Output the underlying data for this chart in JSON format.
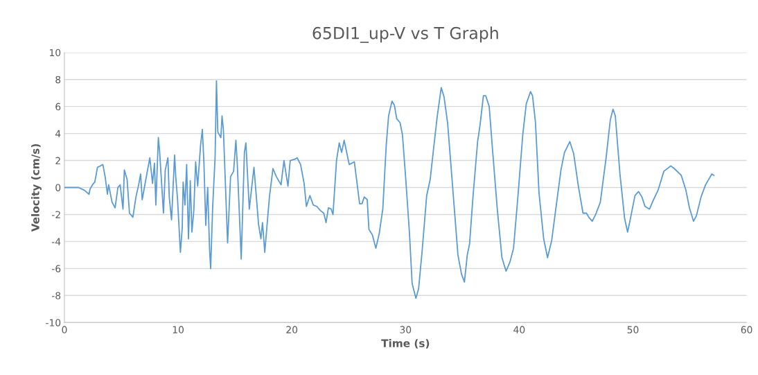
{
  "chart_data": {
    "type": "line",
    "title": "65DI1_up-V vs T Graph",
    "xlabel": "Time (s)",
    "ylabel": "Velocity (cm/s)",
    "xlim": [
      0,
      60
    ],
    "xticks": [
      0,
      10,
      20,
      30,
      40,
      50,
      60
    ],
    "ylim": [
      -10,
      10
    ],
    "yticks": [
      -10,
      -8,
      -6,
      -4,
      -2,
      0,
      2,
      4,
      6,
      8,
      10
    ],
    "grid": "y",
    "marker": "none",
    "line_style": "solid",
    "series": [
      {
        "color": "#5b9bd5",
        "x": [
          0,
          1.24,
          1.75,
          2.16,
          2.26,
          2.46,
          2.67,
          2.91,
          3.17,
          3.38,
          3.58,
          3.78,
          3.89,
          4.19,
          4.46,
          4.7,
          4.9,
          5.15,
          5.27,
          5.51,
          5.72,
          6.02,
          6.29,
          6.53,
          6.7,
          6.84,
          7.14,
          7.51,
          7.75,
          7.92,
          8.04,
          8.26,
          8.37,
          8.71,
          8.87,
          9.1,
          9.22,
          9.42,
          9.69,
          9.79,
          9.95,
          10.2,
          10.36,
          10.44,
          10.6,
          10.75,
          10.91,
          11.07,
          11.21,
          11.38,
          11.54,
          11.72,
          11.97,
          12.13,
          12.27,
          12.43,
          12.6,
          12.76,
          12.86,
          13.04,
          13.25,
          13.37,
          13.49,
          13.76,
          13.86,
          13.98,
          14.35,
          14.61,
          14.88,
          15.08,
          15.2,
          15.55,
          15.83,
          15.96,
          16.26,
          16.67,
          17.07,
          17.28,
          17.42,
          17.62,
          18.03,
          18.34,
          18.64,
          19.05,
          19.31,
          19.66,
          19.86,
          20.27,
          20.47,
          20.77,
          21.08,
          21.28,
          21.59,
          21.89,
          22.2,
          22.5,
          22.81,
          23.01,
          23.22,
          23.46,
          23.62,
          23.93,
          24.17,
          24.38,
          24.6,
          25.05,
          25.5,
          25.96,
          26.17,
          26.37,
          26.63,
          26.78,
          27.08,
          27.39,
          27.69,
          28.0,
          28.3,
          28.51,
          28.81,
          29.02,
          29.22,
          29.52,
          29.73,
          30.03,
          30.34,
          30.58,
          30.91,
          31.15,
          31.46,
          31.86,
          32.17,
          32.47,
          32.78,
          33.14,
          33.39,
          33.7,
          34.1,
          34.61,
          34.92,
          35.18,
          35.43,
          35.63,
          35.94,
          36.34,
          36.55,
          36.85,
          37.05,
          37.36,
          37.66,
          38.07,
          38.48,
          38.84,
          39.19,
          39.5,
          39.91,
          40.31,
          40.62,
          40.99,
          41.17,
          41.43,
          41.74,
          42.15,
          42.49,
          42.86,
          43.26,
          43.67,
          43.98,
          44.45,
          44.79,
          45.2,
          45.61,
          45.91,
          46.12,
          46.42,
          46.72,
          47.13,
          47.64,
          48.01,
          48.25,
          48.45,
          48.86,
          49.27,
          49.53,
          49.78,
          50.18,
          50.49,
          50.79,
          51.06,
          51.46,
          51.81,
          52.21,
          52.72,
          53.34,
          53.64,
          54.25,
          54.66,
          54.97,
          55.33,
          55.58,
          55.99,
          56.39,
          56.94,
          57.12
        ],
        "values": [
          0,
          0,
          -0.2,
          -0.5,
          -0.1,
          0.2,
          0.4,
          1.5,
          1.6,
          1.7,
          0.8,
          -0.5,
          0.2,
          -1.1,
          -1.5,
          0,
          0.2,
          -1.6,
          1.3,
          0.6,
          -1.9,
          -2.2,
          -0.7,
          0.2,
          1.0,
          -0.9,
          0.5,
          2.2,
          0.3,
          1.8,
          -1.3,
          3.7,
          2.7,
          -1.9,
          1.3,
          2.2,
          -0.7,
          -2.4,
          2.4,
          0.8,
          -0.9,
          -4.8,
          -3.0,
          0.4,
          -1.3,
          1.7,
          -3.8,
          0.5,
          -3.3,
          -1.7,
          1.9,
          0.1,
          3.1,
          4.3,
          1.8,
          -2.8,
          0,
          -4.5,
          -6.0,
          -1.4,
          2.2,
          7.9,
          4.1,
          3.7,
          5.3,
          4.3,
          -4.1,
          0.8,
          1.2,
          3.5,
          1.8,
          -5.3,
          2.6,
          3.3,
          -1.6,
          1.5,
          -2.7,
          -3.8,
          -2.6,
          -4.8,
          -0.7,
          1.4,
          0.8,
          0.2,
          2.0,
          0.1,
          2.0,
          2.1,
          2.2,
          1.7,
          0.3,
          -1.4,
          -0.6,
          -1.3,
          -1.4,
          -1.7,
          -1.9,
          -2.6,
          -1.5,
          -1.6,
          -2.0,
          2.0,
          3.3,
          2.6,
          3.5,
          1.7,
          1.9,
          -1.2,
          -1.2,
          -0.7,
          -0.9,
          -3.1,
          -3.5,
          -4.5,
          -3.4,
          -1.6,
          3.1,
          5.3,
          6.4,
          6.1,
          5.1,
          4.8,
          3.9,
          0.5,
          -3.3,
          -7.1,
          -8.2,
          -7.5,
          -4.7,
          -0.6,
          0.6,
          2.9,
          5.2,
          7.4,
          6.7,
          4.8,
          0.5,
          -5.0,
          -6.4,
          -7.0,
          -5.0,
          -4.2,
          -0.6,
          3.4,
          4.6,
          6.8,
          6.8,
          6.0,
          2.7,
          -1.6,
          -5.2,
          -6.2,
          -5.5,
          -4.5,
          -0.4,
          3.9,
          6.2,
          7.1,
          6.8,
          4.8,
          -0.4,
          -3.8,
          -5.2,
          -3.9,
          -1.3,
          1.3,
          2.6,
          3.4,
          2.5,
          0.1,
          -1.9,
          -1.9,
          -2.2,
          -2.5,
          -2.0,
          -1.1,
          2.2,
          5.0,
          5.8,
          5.3,
          1.0,
          -2.3,
          -3.3,
          -2.3,
          -0.6,
          -0.3,
          -0.7,
          -1.4,
          -1.6,
          -0.9,
          -0.2,
          1.2,
          1.6,
          1.4,
          0.9,
          -0.2,
          -1.5,
          -2.5,
          -2.1,
          -0.7,
          0.2,
          1.0,
          0.9
        ]
      }
    ]
  }
}
